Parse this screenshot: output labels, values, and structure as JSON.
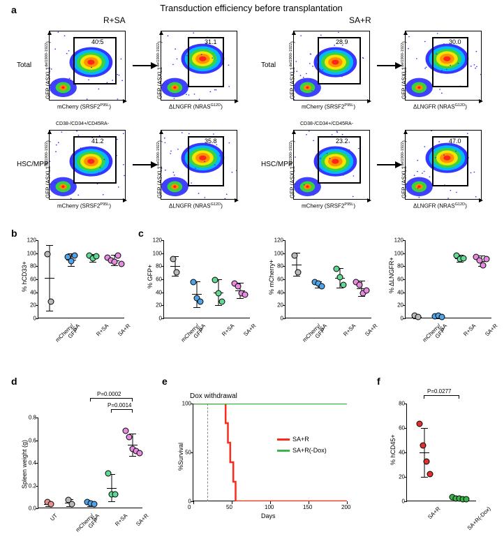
{
  "figure": {
    "title": "Transduction efficiency before transplantation",
    "col_labels": [
      "R+SA",
      "SA+R"
    ]
  },
  "panel_a": {
    "label": "a",
    "rows": [
      "Total",
      "HSC/MPP"
    ],
    "subtitle_top": "CD38-/CD34+/CD45RA-",
    "y_axis": "GFP (ASXL1",
    "y_axis_sup": "del1900-1922",
    "x_axis1": "mCherry (SRSF2",
    "x_axis1_sup": "P95L",
    "x_axis2": "ΔLNGFR (NRAS",
    "x_axis2_sup": "G12D",
    "gates": {
      "RSA_total_1": "40.5",
      "RSA_total_2": "31.1",
      "SAR_total_1": "28.9",
      "SAR_total_2": "30.0",
      "RSA_hsc_1": "41.2",
      "RSA_hsc_2": "35.8",
      "SAR_hsc_1": "23.2",
      "SAR_hsc_2": "47.0"
    }
  },
  "panel_b": {
    "label": "b",
    "ylabel": "% hCD33+",
    "ylim": [
      0,
      120
    ],
    "ytick_step": 20,
    "cats": [
      "mCherry/\nGFP",
      "SA",
      "R+SA",
      "SA+R"
    ],
    "colors": [
      "#b9b9b9",
      "#4fa3e8",
      "#60d994",
      "#e58ce0"
    ],
    "data": [
      {
        "mean": 62,
        "err": 50,
        "pts": [
          98,
          25
        ]
      },
      {
        "mean": 90,
        "err": 10,
        "pts": [
          93,
          87,
          95
        ]
      },
      {
        "mean": 93,
        "err": 6,
        "pts": [
          95,
          91,
          94
        ]
      },
      {
        "mean": 89,
        "err": 8,
        "pts": [
          92,
          88,
          86,
          95,
          83
        ]
      }
    ]
  },
  "panel_c": {
    "label": "c",
    "charts": [
      {
        "ylabel": "% GFP+",
        "data": [
          {
            "mean": 80,
            "err": 15,
            "pts": [
              90,
              70
            ]
          },
          {
            "mean": 37,
            "err": 20,
            "pts": [
              55,
              30,
              25
            ]
          },
          {
            "mean": 40,
            "err": 20,
            "pts": [
              58,
              38,
              25
            ]
          },
          {
            "mean": 43,
            "err": 12,
            "pts": [
              52,
              48,
              38,
              35
            ]
          }
        ]
      },
      {
        "ylabel": "% mCherry+",
        "data": [
          {
            "mean": 83,
            "err": 18,
            "pts": [
              95,
              70
            ]
          },
          {
            "mean": 52,
            "err": 5,
            "pts": [
              55,
              52,
              48
            ]
          },
          {
            "mean": 62,
            "err": 15,
            "pts": [
              75,
              62,
              50
            ]
          },
          {
            "mean": 46,
            "err": 12,
            "pts": [
              55,
              50,
              38,
              42
            ]
          }
        ]
      },
      {
        "ylabel": "% ΔLNGFR+",
        "data": [
          {
            "mean": 2,
            "err": 2,
            "pts": [
              3,
              1
            ]
          },
          {
            "mean": 2,
            "err": 2,
            "pts": [
              2,
              3,
              1
            ]
          },
          {
            "mean": 92,
            "err": 5,
            "pts": [
              95,
              90,
              91
            ]
          },
          {
            "mean": 88,
            "err": 8,
            "pts": [
              93,
              88,
              80,
              90
            ]
          }
        ]
      }
    ],
    "ylim": [
      0,
      120
    ],
    "ytick_step": 20,
    "cats": [
      "mCherry/\nGFP",
      "SA",
      "R+SA",
      "SA+R"
    ],
    "colors": [
      "#b9b9b9",
      "#4fa3e8",
      "#60d994",
      "#e58ce0"
    ]
  },
  "panel_d": {
    "label": "d",
    "ylabel": "Spleen weight (g)",
    "ylim": [
      0,
      0.8
    ],
    "ytick_step": 0.2,
    "cats": [
      "UT",
      "mCherry/\nGFP",
      "SA",
      "R+SA",
      "SA+R"
    ],
    "colors": [
      "#e89090",
      "#b9b9b9",
      "#4fa3e8",
      "#60d994",
      "#e58ce0"
    ],
    "pvals": [
      {
        "a": 3,
        "b": 4,
        "label": "P=0.0014"
      },
      {
        "a": 2,
        "b": 4,
        "label": "P=0.0002"
      }
    ],
    "data": [
      {
        "mean": 0.04,
        "err": 0.02,
        "pts": [
          0.05,
          0.03
        ]
      },
      {
        "mean": 0.05,
        "err": 0.03,
        "pts": [
          0.07,
          0.03
        ]
      },
      {
        "mean": 0.04,
        "err": 0.02,
        "pts": [
          0.05,
          0.04,
          0.03
        ]
      },
      {
        "mean": 0.18,
        "err": 0.12,
        "pts": [
          0.3,
          0.12,
          0.12
        ]
      },
      {
        "mean": 0.56,
        "err": 0.1,
        "pts": [
          0.68,
          0.62,
          0.52,
          0.5,
          0.48
        ]
      }
    ]
  },
  "panel_e": {
    "label": "e",
    "xlabel": "Days",
    "ylabel": "%Survival",
    "dox_label": "Dox withdrawal",
    "dox_x": 18,
    "xlim": [
      0,
      200
    ],
    "xtick_step": 50,
    "ylim": [
      0,
      100
    ],
    "ytick_step": 50,
    "series": [
      {
        "name": "SA+R",
        "color": "#ff2a1a",
        "pts": [
          [
            0,
            100
          ],
          [
            40,
            100
          ],
          [
            42,
            80
          ],
          [
            45,
            60
          ],
          [
            48,
            40
          ],
          [
            52,
            20
          ],
          [
            55,
            0
          ],
          [
            200,
            0
          ]
        ]
      },
      {
        "name": "SA+R(-Dox)",
        "color": "#3bb54a",
        "pts": [
          [
            0,
            100
          ],
          [
            200,
            100
          ]
        ]
      }
    ]
  },
  "panel_f": {
    "label": "f",
    "ylabel": "% hCD45+",
    "ylim": [
      0,
      80
    ],
    "ytick_step": 20,
    "cats": [
      "SA+R",
      "SA+R(-Dox)"
    ],
    "colors": [
      "#e03030",
      "#3bb54a"
    ],
    "pval": "P=0.0277",
    "data": [
      {
        "mean": 40,
        "err": 20,
        "pts": [
          63,
          45,
          32,
          22
        ]
      },
      {
        "mean": 2,
        "err": 1,
        "pts": [
          3,
          2,
          2,
          1,
          1
        ]
      }
    ]
  }
}
